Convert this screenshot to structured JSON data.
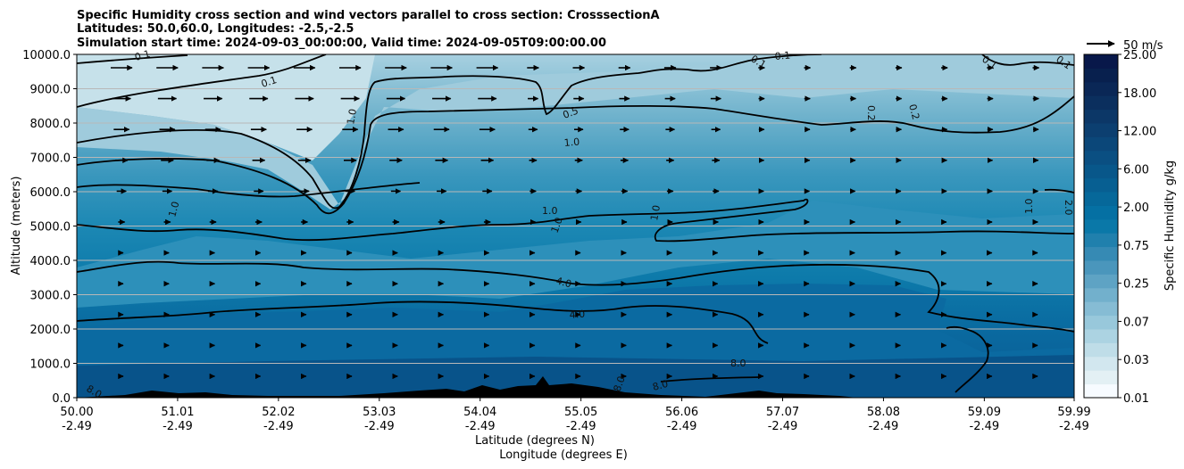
{
  "chart_data": {
    "type": "contour",
    "title_lines": [
      "Specific Humidity cross section and wind vectors parallel to cross section: CrosssectionA",
      "Latitudes: 50.0,60.0, Longitudes: -2.5,-2.5",
      "Simulation start time: 2024-09-03_00:00:00, Valid time: 2024-09-05T09:00:00.00"
    ],
    "ylabel": "Altitude (meters)",
    "xlabel_lat": "Latitude (degrees N)",
    "xlabel_lon": "Longitude (degrees E)",
    "ylim": [
      0,
      10000
    ],
    "y_ticks": [
      "0.0",
      "1000.0",
      "2000.0",
      "3000.0",
      "4000.0",
      "5000.0",
      "6000.0",
      "7000.0",
      "8000.0",
      "9000.0",
      "10000.0"
    ],
    "x_ticks_lat": [
      "50.00",
      "51.01",
      "52.02",
      "53.03",
      "54.04",
      "55.05",
      "56.06",
      "57.07",
      "58.08",
      "59.09",
      "59.99"
    ],
    "x_ticks_lon": [
      "-2.49",
      "-2.49",
      "-2.49",
      "-2.49",
      "-2.49",
      "-2.49",
      "-2.49",
      "-2.49",
      "-2.49",
      "-2.49",
      "-2.49"
    ],
    "colorbar": {
      "label": "Specific Humidity g/kg",
      "tick_labels": [
        "0.01",
        "0.03",
        "0.07",
        "0.25",
        "0.75",
        "2.00",
        "6.00",
        "12.00",
        "18.00",
        "25.00"
      ],
      "colors": [
        "#f7fbff",
        "#e3f0f4",
        "#d2e7ef",
        "#bfdde8",
        "#acd3e2",
        "#98c8db",
        "#86bcd4",
        "#72b0cc",
        "#5ea3c4",
        "#4a96bc",
        "#368ab4",
        "#2080ad",
        "#0a78a8",
        "#0570a3",
        "#06689a",
        "#075f92",
        "#08578a",
        "#0a4f82",
        "#0b4779",
        "#0c3f70",
        "#0c3767",
        "#0b2f5e",
        "#0a2756",
        "#08204e",
        "#08184a"
      ]
    },
    "wind_key": "50 m/s",
    "contour_labels": [
      "0.1",
      "0.1",
      "0.1",
      "0.1",
      "0.1",
      "0.1",
      "0.2",
      "0.2",
      "0.5",
      "1.0",
      "1.0",
      "1.0",
      "1.0",
      "1.0",
      "1.0",
      "1.0",
      "2.0",
      "4.0",
      "4.0",
      "8.0",
      "8.0",
      "8.0",
      "8.0"
    ]
  }
}
